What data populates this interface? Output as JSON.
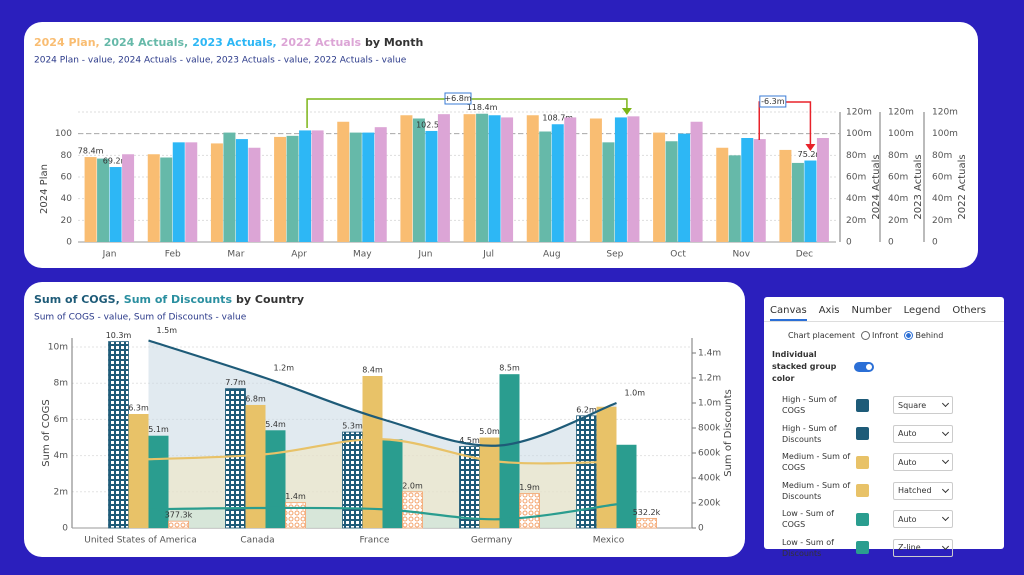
{
  "chart_data": [
    {
      "type": "bar",
      "title_parts": [
        "2024 Plan,",
        "2024 Actuals,",
        "2023 Actuals,",
        "2022 Actuals",
        "by Month"
      ],
      "subtitle": "2024 Plan - value, 2024 Actuals - value, 2023 Actuals - value, 2022 Actuals - value",
      "y_label": "2024 Plan",
      "y2_labels": [
        "2024 Actuals",
        "2023 Actuals",
        "2022 Actuals"
      ],
      "categories": [
        "Jan",
        "Feb",
        "Mar",
        "Apr",
        "May",
        "Jun",
        "Jul",
        "Aug",
        "Sep",
        "Oct",
        "Nov",
        "Dec"
      ],
      "series": [
        {
          "name": "2024 Plan",
          "color": "#f9bd72",
          "values": [
            78.4,
            81,
            91,
            97,
            111,
            117,
            118,
            117,
            114,
            101,
            87,
            85
          ],
          "value_labels": [
            "78.4m",
            null,
            null,
            null,
            null,
            null,
            null,
            null,
            null,
            null,
            null,
            null
          ]
        },
        {
          "name": "2024 Actuals",
          "color": "#66b9a9",
          "axis": "y2",
          "values": [
            77,
            78,
            101,
            98,
            101,
            114,
            118.4,
            102,
            92,
            93,
            80,
            73
          ],
          "value_labels": [
            null,
            null,
            null,
            null,
            null,
            null,
            "118.4m",
            null,
            null,
            null,
            null,
            null
          ]
        },
        {
          "name": "2023 Actuals",
          "color": "#2db7f5",
          "axis": "y2",
          "values": [
            69.2,
            92,
            95,
            103,
            101,
            102.5,
            117,
            108.7,
            115,
            100,
            96,
            75.2
          ],
          "value_labels": [
            "69.2m",
            null,
            null,
            null,
            null,
            "102.5m",
            null,
            "108.7m",
            null,
            null,
            null,
            "75.2m"
          ]
        },
        {
          "name": "2022 Actuals",
          "color": "#dca5d6",
          "axis": "y2",
          "values": [
            81,
            92,
            87,
            103,
            106,
            118,
            115,
            115,
            116,
            111,
            95,
            96
          ]
        }
      ],
      "ylim": [
        0,
        120
      ],
      "yticks": [
        0,
        20,
        40,
        60,
        80,
        100
      ],
      "y2lim": [
        0,
        120
      ],
      "y2ticks": [
        0,
        {
          "value": 20,
          "label": "20m"
        },
        {
          "value": 40,
          "label": "40m"
        },
        {
          "value": 60,
          "label": "60m"
        },
        {
          "value": 80,
          "label": "80m"
        },
        {
          "value": 100,
          "label": "100m"
        },
        {
          "value": 120,
          "label": "120m"
        }
      ],
      "reference_value": 100,
      "annotations": [
        "+6.8m",
        "-6.3m"
      ],
      "grid": true
    },
    {
      "type": "combo",
      "title_parts": [
        "Sum of COGS,",
        "Sum of Discounts",
        "by Country"
      ],
      "title_colors": [
        "#1e5b78",
        "#2a8fa0",
        "#333333"
      ],
      "subtitle": "Sum of COGS - value, Sum of Discounts - value",
      "y_label": "Sum of COGS",
      "y2_label": "Sum of Discounts",
      "categories": [
        "United States of America",
        "Canada",
        "France",
        "Germany",
        "Mexico"
      ],
      "bars": [
        {
          "name": "High - Sum of COGS",
          "color": "#1e5b78",
          "pattern": "square",
          "values": [
            10.3,
            7.7,
            5.3,
            4.5,
            6.2
          ],
          "value_labels": [
            "10.3m",
            "7.7m",
            "5.3m",
            "4.5m",
            "6.2m"
          ]
        },
        {
          "name": "Medium - Sum of COGS",
          "color": "#e8c268",
          "values": [
            6.3,
            6.8,
            8.4,
            5.0,
            6.7
          ],
          "value_labels": [
            "6.3m",
            "6.8m",
            "8.4m",
            "5.0m",
            null
          ]
        },
        {
          "name": "Low - Sum of COGS",
          "color": "#2a9d8f",
          "values": [
            5.1,
            5.4,
            4.9,
            8.5,
            4.6
          ],
          "value_labels": [
            "5.1m",
            "5.4m",
            null,
            "8.5m",
            null
          ]
        },
        {
          "color": "#f4a36c",
          "pattern": "circle",
          "values": [
            0.3773,
            1.4,
            2.0,
            1.9,
            0.5322
          ],
          "value_labels": [
            "377.3k",
            "1.4m",
            "2.0m",
            "1.9m",
            "532.2k"
          ]
        }
      ],
      "lines": [
        {
          "name": "High - Sum of Discounts",
          "color": "#1e5b78",
          "axis": "y2",
          "values": [
            1.5,
            1.2,
            0.87,
            0.66,
            1.0
          ],
          "value_labels": [
            "1.5m",
            "1.2m",
            null,
            null,
            "1.0m"
          ]
        },
        {
          "name": "Medium - Sum of Discounts",
          "color": "#e8c268",
          "axis": "y2",
          "values": [
            0.55,
            0.59,
            0.71,
            0.53,
            0.53
          ]
        },
        {
          "name": "Low - Sum of Discounts",
          "color": "#2a9d8f",
          "axis": "y2",
          "values": [
            0.15,
            0.16,
            0.15,
            0.07,
            0.19
          ]
        }
      ],
      "ylim": [
        0,
        10.5
      ],
      "yticks": [
        0,
        {
          "value": 2,
          "label": "2m"
        },
        {
          "value": 4,
          "label": "4m"
        },
        {
          "value": 6,
          "label": "6m"
        },
        {
          "value": 8,
          "label": "8m"
        },
        {
          "value": 10,
          "label": "10m"
        }
      ],
      "y2lim": [
        0,
        1.52
      ],
      "y2ticks": [
        0,
        {
          "value": 0.2,
          "label": "200k"
        },
        {
          "value": 0.4,
          "label": "400k"
        },
        {
          "value": 0.6,
          "label": "600k"
        },
        {
          "value": 0.8,
          "label": "800k"
        },
        {
          "value": 1.0,
          "label": "1.0m"
        },
        {
          "value": 1.2,
          "label": "1.2m"
        },
        {
          "value": 1.4,
          "label": "1.4m"
        }
      ],
      "grid": true
    }
  ],
  "settings_panel": {
    "tabs": [
      "Canvas",
      "Axis",
      "Number",
      "Legend",
      "Others"
    ],
    "placement_label": "Chart placement",
    "placement_options": [
      "Infront",
      "Behind"
    ],
    "toggle_label": "Individual stacked group color",
    "rows": [
      {
        "name": "High - Sum of COGS",
        "color": "#1e5b78",
        "option": "Square"
      },
      {
        "name": "High - Sum of Discounts",
        "color": "#1e5b78",
        "option": "Auto"
      },
      {
        "name": "Medium - Sum of COGS",
        "color": "#e8c268",
        "option": "Auto"
      },
      {
        "name": "Medium - Sum of Discounts",
        "color": "#e8c268",
        "option": "Hatched"
      },
      {
        "name": "Low - Sum of COGS",
        "color": "#2a9d8f",
        "option": "Auto"
      },
      {
        "name": "Low - Sum of Discounts",
        "color": "#2a9d8f",
        "option": "Z-line"
      }
    ]
  }
}
